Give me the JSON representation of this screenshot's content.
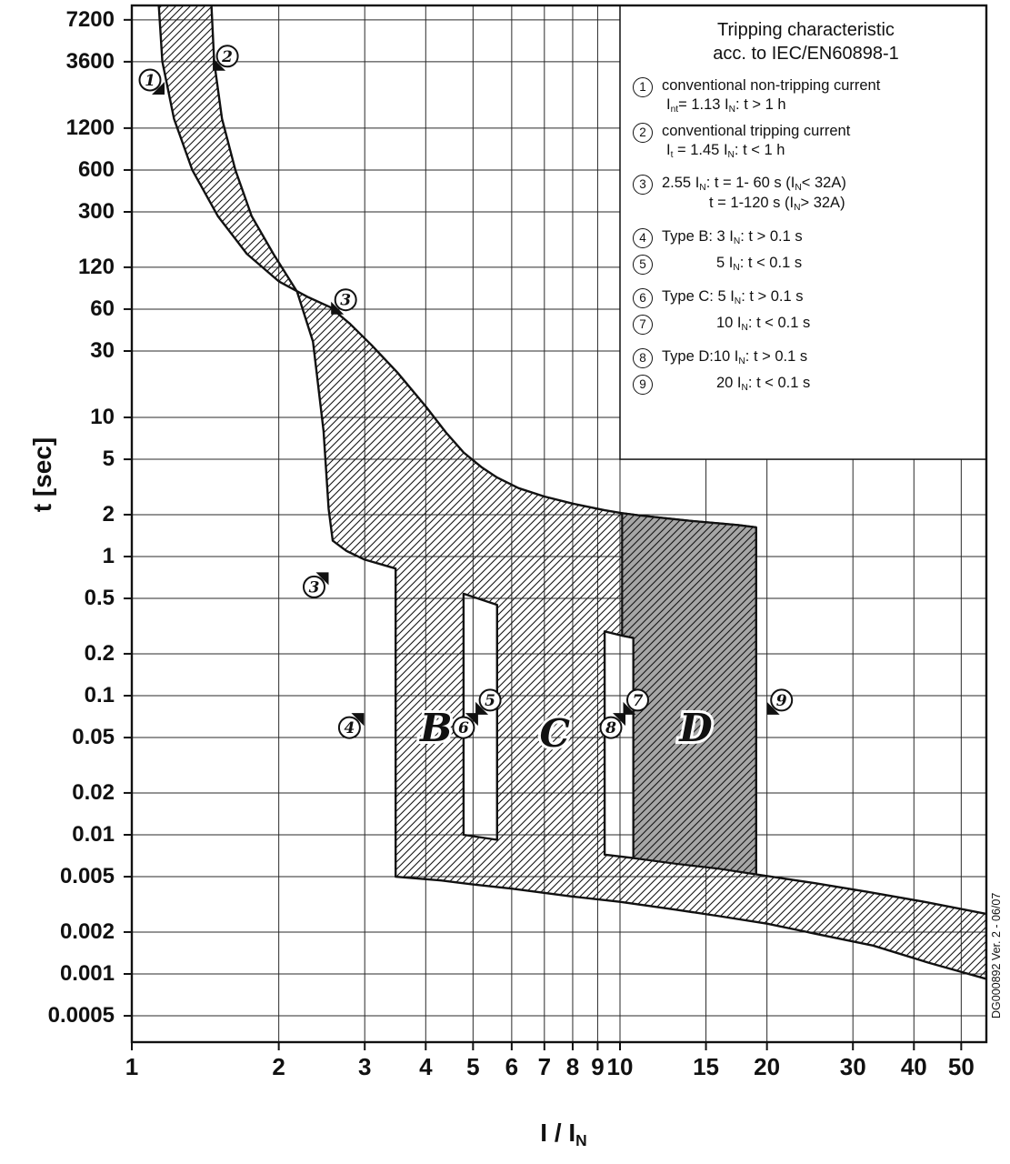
{
  "chart_data": {
    "type": "area",
    "title": "Tripping characteristic acc. to IEC/EN60898-1",
    "xlabel": "I / I_{N}",
    "ylabel": "t [sec]",
    "x_scale": "log",
    "y_scale": "log",
    "x_range": [
      1,
      56
    ],
    "y_range": [
      0.0003,
      10600
    ],
    "grid": true,
    "x_ticks": [
      "1",
      "2",
      "3",
      "4",
      "5",
      "6",
      "7",
      "8",
      "9",
      "10",
      "15",
      "20",
      "30",
      "40",
      "50"
    ],
    "y_ticks": [
      "7200",
      "3600",
      "1200",
      "600",
      "300",
      "120",
      "60",
      "30",
      "10",
      "5",
      "2",
      "1",
      "0.5",
      "0.2",
      "0.1",
      "0.05",
      "0.02",
      "0.01",
      "0.005",
      "0.002",
      "0.001",
      "0.0005"
    ],
    "legend": {
      "title_lines": [
        "Tripping characteristic",
        "acc. to IEC/EN60898-1"
      ],
      "items": [
        {
          "num": "1",
          "lines": [
            "conventional non-tripping current",
            "I_{nt}= 1.13 I_{N}: t > 1 h"
          ]
        },
        {
          "num": "2",
          "lines": [
            "conventional tripping current",
            "I_{t} = 1.45 I_{N}: t < 1 h"
          ]
        },
        {
          "num": "3",
          "lines": [
            "2.55 I_{N}: t = 1- 60 s (I_{N}< 32A)",
            "t = 1-120 s (I_{N}> 32A)"
          ]
        },
        {
          "num": "4",
          "lines": [
            "Type B: 3 I_{N}: t > 0.1 s"
          ]
        },
        {
          "num": "5",
          "lines": [
            "5 I_{N}: t < 0.1 s"
          ]
        },
        {
          "num": "6",
          "lines": [
            "Type C: 5 I_{N}: t > 0.1 s"
          ]
        },
        {
          "num": "7",
          "lines": [
            "10 I_{N}: t < 0.1 s"
          ]
        },
        {
          "num": "8",
          "lines": [
            "Type D:10 I_{N}: t > 0.1 s"
          ]
        },
        {
          "num": "9",
          "lines": [
            "20 I_{N}: t < 0.1 s"
          ]
        }
      ]
    },
    "bands": {
      "upper": [
        [
          1.13,
          12000
        ],
        [
          1.155,
          3600
        ],
        [
          1.22,
          1400
        ],
        [
          1.33,
          600
        ],
        [
          1.5,
          280
        ],
        [
          1.72,
          150
        ],
        [
          2.0,
          95
        ],
        [
          2.3,
          73
        ],
        [
          2.55,
          62
        ],
        [
          2.8,
          47
        ],
        [
          3.1,
          33
        ],
        [
          3.5,
          21
        ],
        [
          4.0,
          12
        ],
        [
          4.4,
          7.8
        ],
        [
          4.78,
          5.6
        ]
      ],
      "upper_ext": [
        [
          4.78,
          5.6
        ],
        [
          5.2,
          4.4
        ],
        [
          5.6,
          3.7
        ],
        [
          6.2,
          3.1
        ],
        [
          7.0,
          2.7
        ],
        [
          8.0,
          2.4
        ],
        [
          9.3,
          2.15
        ],
        [
          10.1,
          2.05
        ],
        [
          11,
          1.97
        ],
        [
          12.5,
          1.88
        ],
        [
          14,
          1.8
        ],
        [
          16,
          1.73
        ],
        [
          17.5,
          1.68
        ],
        [
          19,
          1.62
        ]
      ],
      "lower": [
        [
          1.45,
          12000
        ],
        [
          1.475,
          3600
        ],
        [
          1.53,
          1400
        ],
        [
          1.63,
          600
        ],
        [
          1.76,
          280
        ],
        [
          1.95,
          150
        ],
        [
          2.18,
          80
        ],
        [
          2.35,
          35
        ],
        [
          2.47,
          8
        ],
        [
          2.53,
          2.2
        ],
        [
          2.58,
          1.3
        ],
        [
          2.75,
          1.1
        ],
        [
          3.0,
          0.95
        ],
        [
          3.47,
          0.82
        ]
      ],
      "lower_ext": [
        [
          3.47,
          0.82
        ],
        [
          4,
          0.66
        ],
        [
          4.78,
          0.54
        ],
        [
          5.6,
          0.45
        ],
        [
          6.5,
          0.39
        ],
        [
          7.5,
          0.35
        ],
        [
          8.5,
          0.315
        ],
        [
          9.3,
          0.29
        ],
        [
          10.1,
          0.27
        ],
        [
          10.65,
          0.26
        ]
      ],
      "inst_top": [
        [
          3.47,
          0.0115
        ],
        [
          4.3,
          0.0105
        ],
        [
          4.78,
          0.01
        ],
        [
          5.6,
          0.0092
        ],
        [
          7,
          0.0082
        ],
        [
          9.3,
          0.0072
        ],
        [
          10.65,
          0.0068
        ],
        [
          13,
          0.0062
        ],
        [
          16,
          0.0057
        ],
        [
          19,
          0.0052
        ],
        [
          25,
          0.0045
        ],
        [
          32,
          0.0039
        ],
        [
          42,
          0.0033
        ],
        [
          56.3,
          0.0027
        ]
      ],
      "inst_bottom": [
        [
          3.47,
          0.005
        ],
        [
          4.3,
          0.0047
        ],
        [
          5,
          0.0044
        ],
        [
          6,
          0.0041
        ],
        [
          8,
          0.0036
        ],
        [
          10,
          0.0033
        ],
        [
          13,
          0.0029
        ],
        [
          16,
          0.0026
        ],
        [
          20,
          0.0023
        ],
        [
          26,
          0.0019
        ],
        [
          33,
          0.0016
        ],
        [
          43,
          0.0012
        ],
        [
          56.3,
          0.00092
        ]
      ],
      "strips": {
        "b": {
          "left": 3.47,
          "right": 4.78
        },
        "c": {
          "left": 5.6,
          "right": 9.3
        },
        "d": {
          "notch_left": 10.1,
          "left": 10.65,
          "right": 19
        }
      },
      "d_fill_color": "#a6a6a6"
    },
    "markers": [
      {
        "n": "1",
        "x": 1.167,
        "t": 2090,
        "corner": "br"
      },
      {
        "n": "2",
        "x": 1.465,
        "t": 3100,
        "corner": "bl"
      },
      {
        "n": "3",
        "x": 2.56,
        "t": 55,
        "corner": "bl"
      },
      {
        "n": "3",
        "x": 2.53,
        "t": 0.77,
        "corner": "tr"
      },
      {
        "n": "4",
        "x": 2.99,
        "t": 0.075,
        "corner": "tr"
      },
      {
        "n": "5",
        "x": 5.06,
        "t": 0.073,
        "corner": "bl"
      },
      {
        "n": "6",
        "x": 5.12,
        "t": 0.075,
        "corner": "tr"
      },
      {
        "n": "7",
        "x": 10.15,
        "t": 0.073,
        "corner": "bl"
      },
      {
        "n": "8",
        "x": 10.26,
        "t": 0.075,
        "corner": "tr"
      },
      {
        "n": "9",
        "x": 20.0,
        "t": 0.073,
        "corner": "bl"
      }
    ],
    "type_labels": [
      {
        "text": "B",
        "x": 4.2,
        "t": 0.058
      },
      {
        "text": "C",
        "x": 7.35,
        "t": 0.053
      },
      {
        "text": "D",
        "x": 14.3,
        "t": 0.058
      }
    ],
    "watermark": "DG000892 Ver. 2 - 06/07"
  }
}
